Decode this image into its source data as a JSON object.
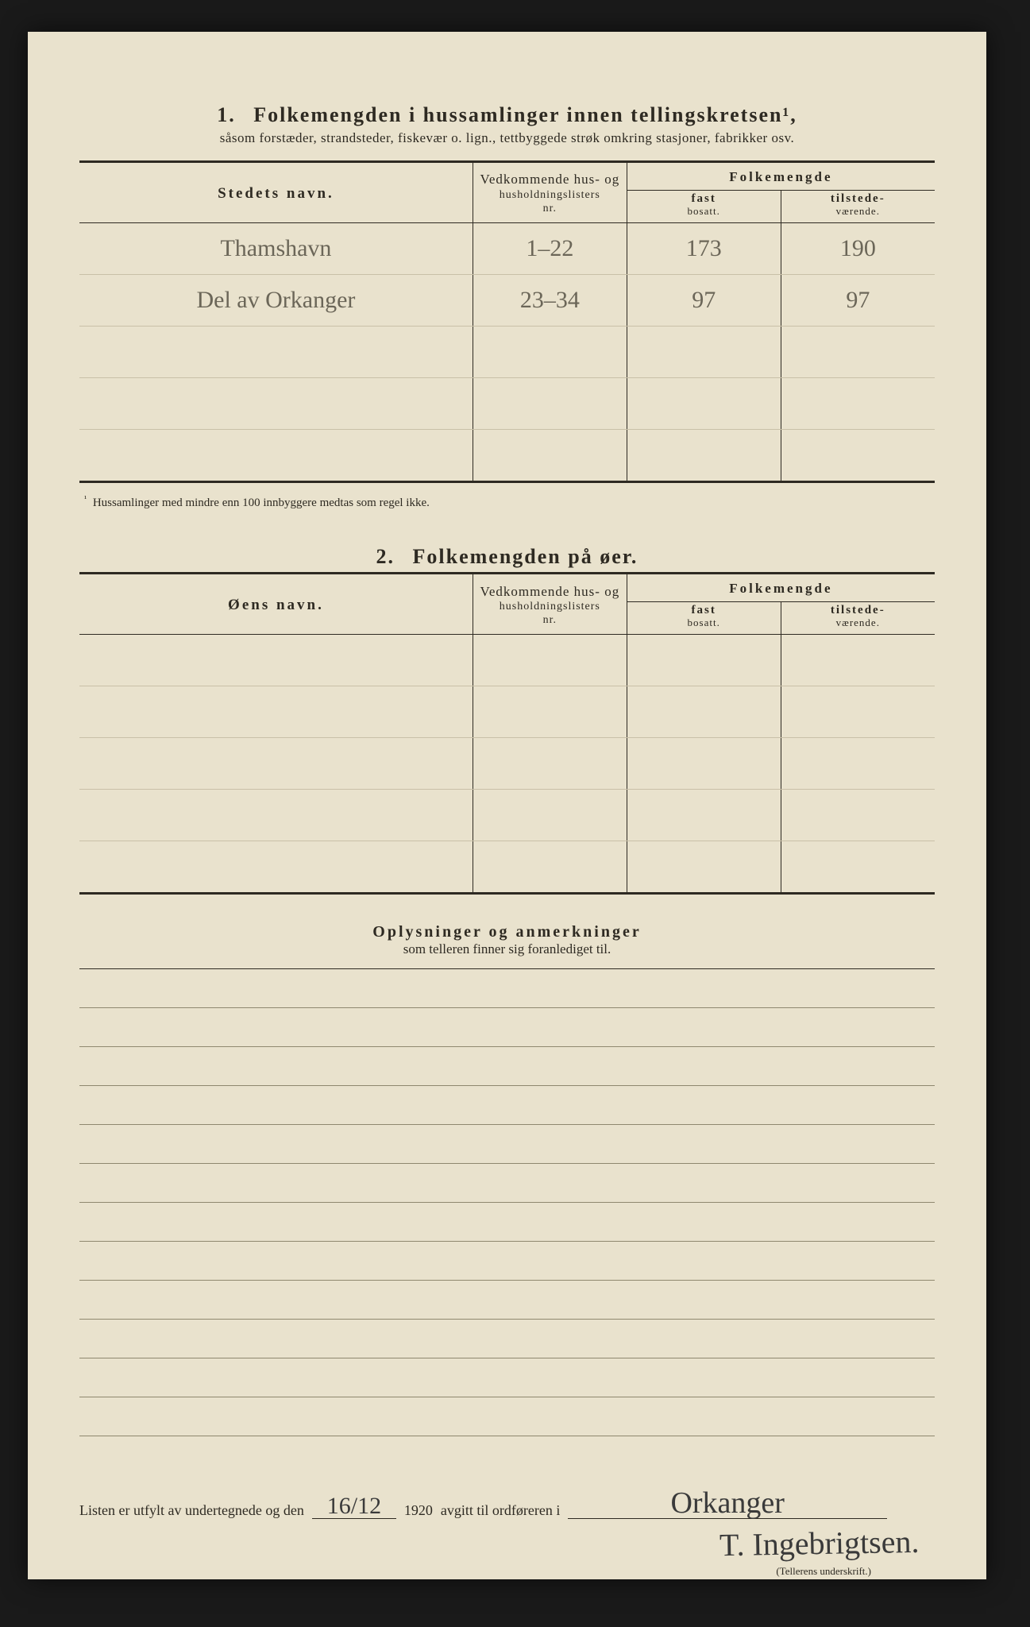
{
  "section1": {
    "number": "1.",
    "title": "Folkemengden i hussamlinger innen tellingskretsen¹,",
    "subtitle": "såsom forstæder, strandsteder, fiskevær o. lign., tettbyggede strøk omkring stasjoner, fabrikker osv.",
    "columns": {
      "name_label": "Stedets navn.",
      "hus_label_1": "Vedkommende hus- og",
      "hus_label_2": "husholdningslisters",
      "hus_label_3": "nr.",
      "folke_group": "Folkemengde",
      "fast_label": "fast",
      "fast_sub": "bosatt.",
      "til_label": "tilstede-",
      "til_sub": "værende."
    },
    "rows": [
      {
        "name": "Thamshavn",
        "hus": "1–22",
        "fast": "173",
        "til": "190"
      },
      {
        "name": "Del av Orkanger",
        "hus": "23–34",
        "fast": "97",
        "til": "97"
      },
      {
        "name": "",
        "hus": "",
        "fast": "",
        "til": ""
      },
      {
        "name": "",
        "hus": "",
        "fast": "",
        "til": ""
      },
      {
        "name": "",
        "hus": "",
        "fast": "",
        "til": ""
      }
    ],
    "footnote_marker": "¹",
    "footnote": "Hussamlinger med mindre enn 100 innbyggere medtas som regel ikke."
  },
  "section2": {
    "number": "2.",
    "title": "Folkemengden på øer.",
    "columns": {
      "name_label": "Øens navn.",
      "hus_label_1": "Vedkommende hus- og",
      "hus_label_2": "husholdningslisters",
      "hus_label_3": "nr.",
      "folke_group": "Folkemengde",
      "fast_label": "fast",
      "fast_sub": "bosatt.",
      "til_label": "tilstede-",
      "til_sub": "værende."
    },
    "rows": [
      {
        "name": "",
        "hus": "",
        "fast": "",
        "til": ""
      },
      {
        "name": "",
        "hus": "",
        "fast": "",
        "til": ""
      },
      {
        "name": "",
        "hus": "",
        "fast": "",
        "til": ""
      },
      {
        "name": "",
        "hus": "",
        "fast": "",
        "til": ""
      },
      {
        "name": "",
        "hus": "",
        "fast": "",
        "til": ""
      }
    ]
  },
  "remarks": {
    "title": "Oplysninger og anmerkninger",
    "subtitle": "som telleren finner sig foranlediget til.",
    "line_count": 12
  },
  "signature": {
    "text_a": "Listen er utfylt av undertegnede og den",
    "date": "16/12",
    "year": "1920",
    "text_b": "avgitt til ordføreren i",
    "place": "Orkanger",
    "signer": "T. Ingebrigtsen.",
    "caption": "(Tellerens underskrift.)"
  },
  "style": {
    "paper_bg": "#e9e2cd",
    "ink": "#2e2a22",
    "pencil": "#6b6658",
    "faint_rule": "#c9c0a8"
  }
}
